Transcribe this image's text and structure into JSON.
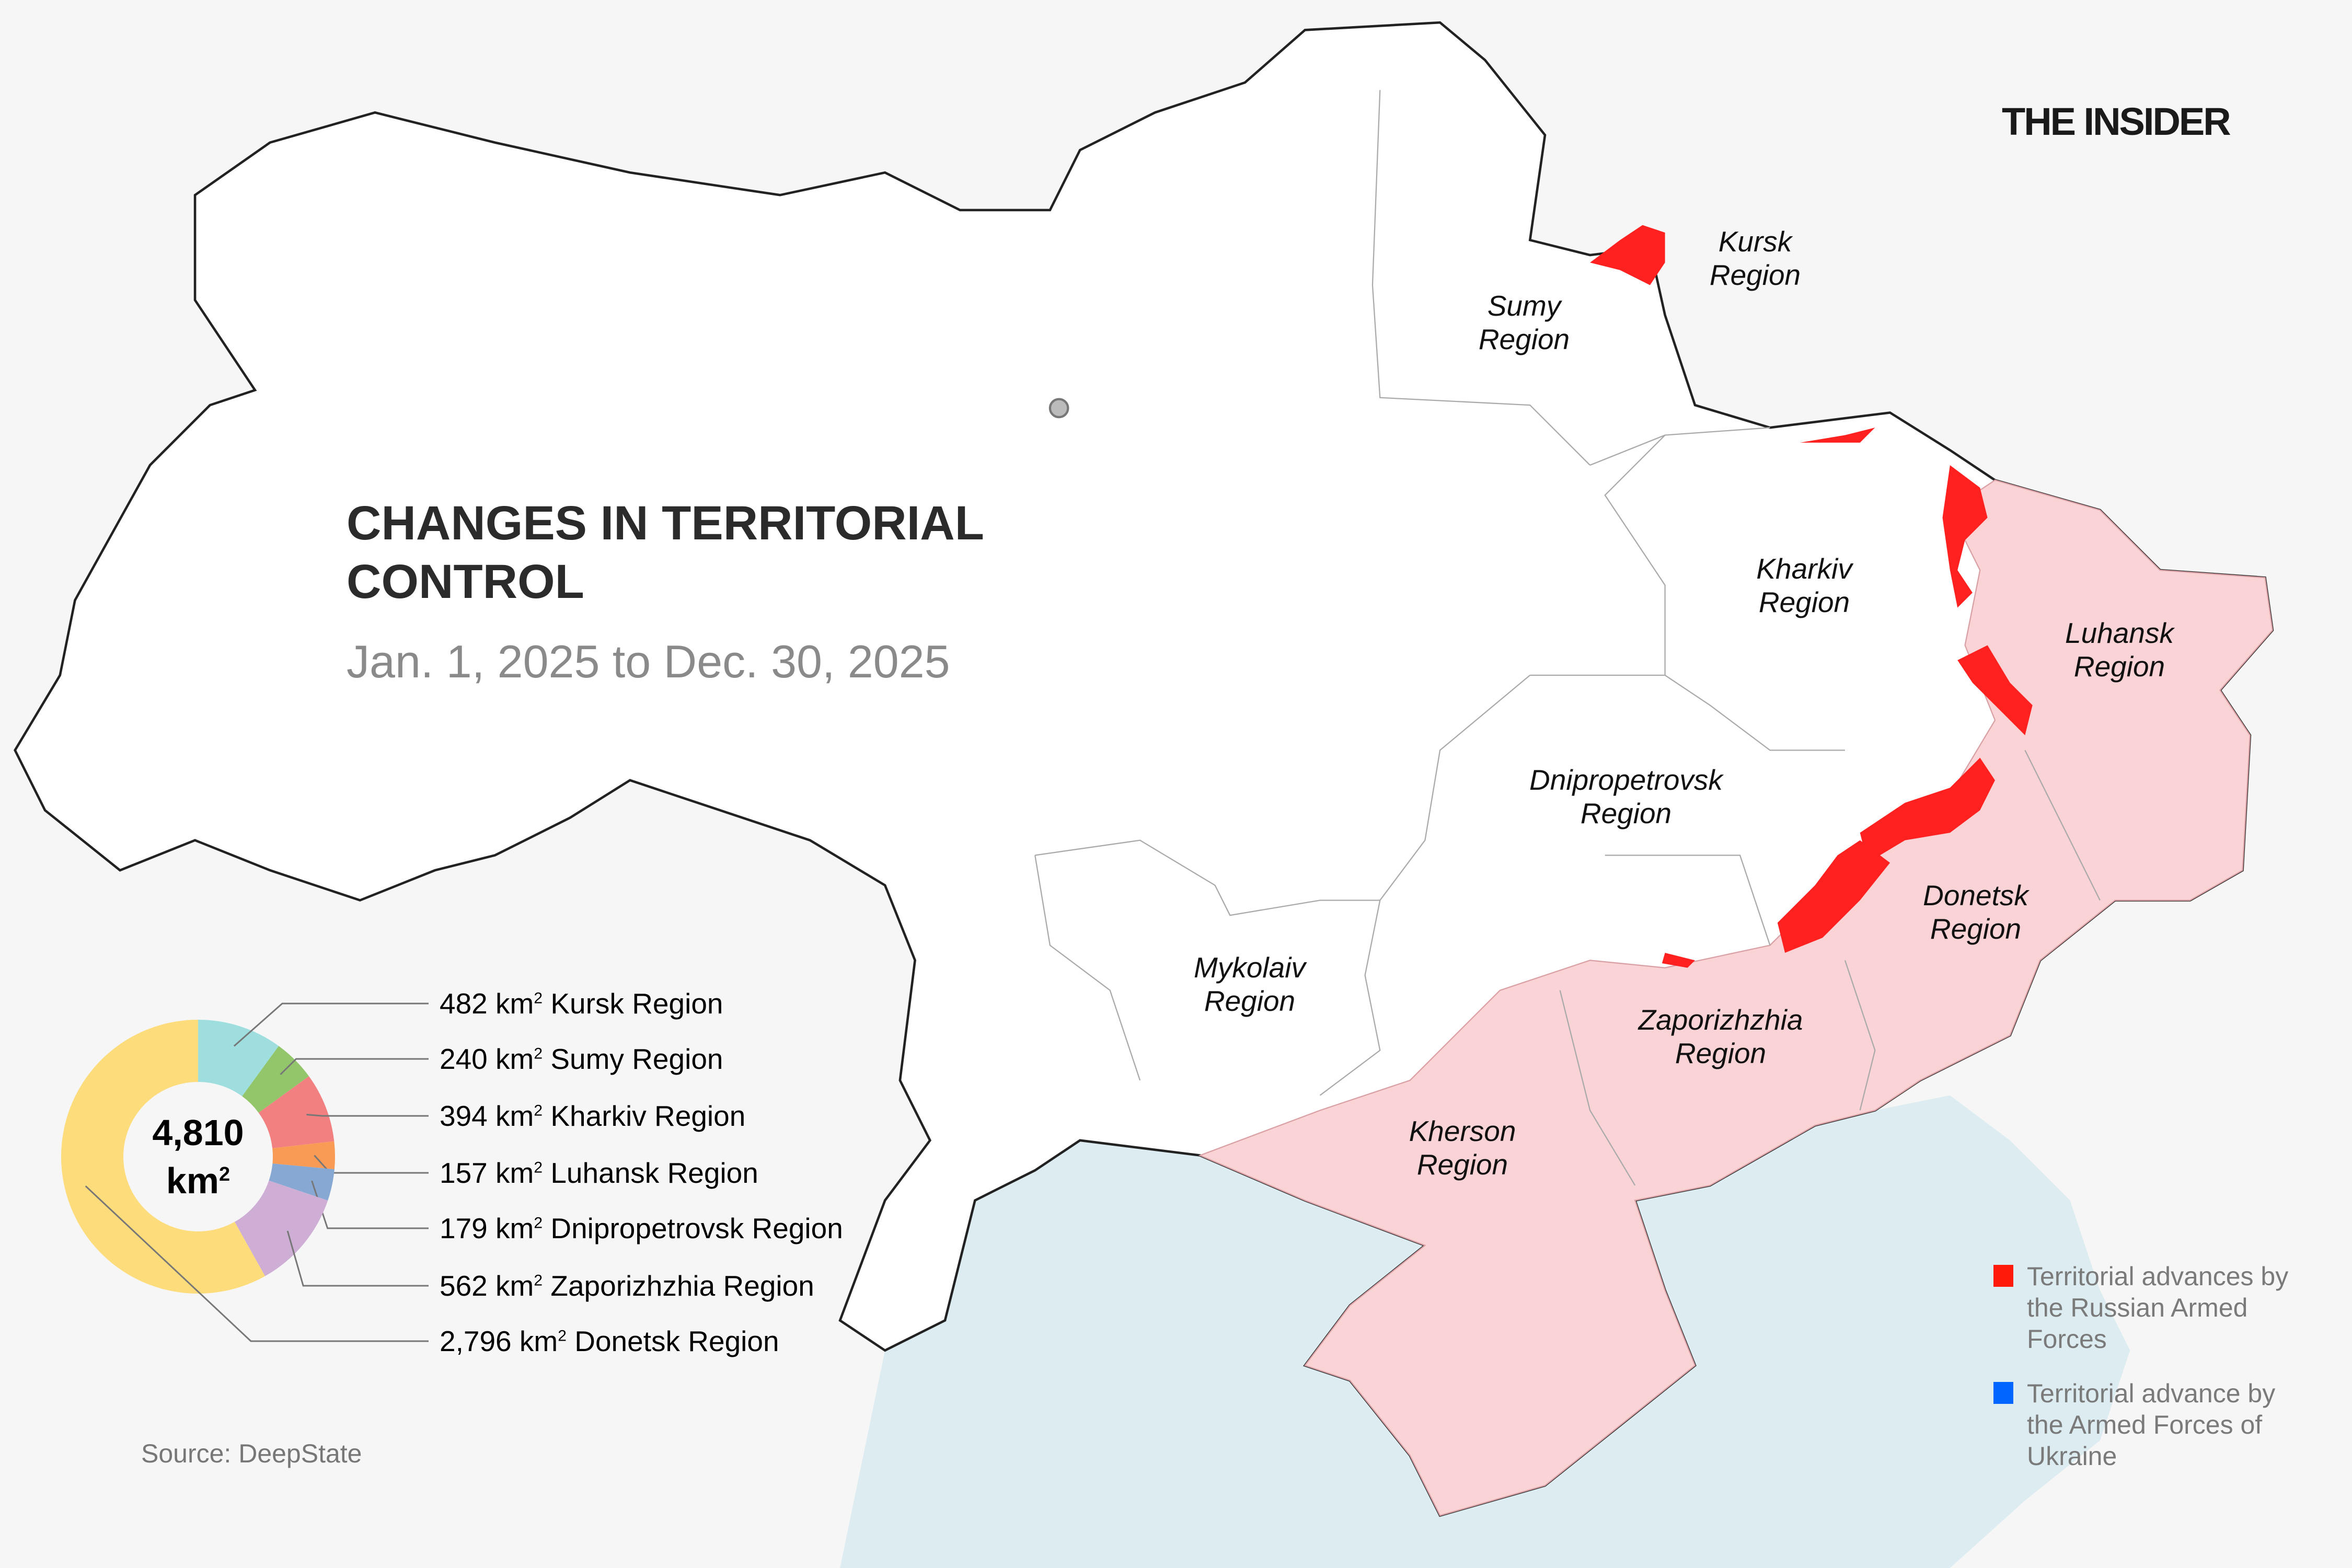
{
  "header": {
    "title_line1": "CHANGES IN TERRITORIAL",
    "title_line2": "CONTROL",
    "subtitle": "Jan. 1, 2025 to Dec. 30, 2025",
    "logo": "THE INSIDER"
  },
  "regions": [
    {
      "l1": "Kursk",
      "l2": "Region"
    },
    {
      "l1": "Sumy",
      "l2": "Region"
    },
    {
      "l1": "Kharkiv",
      "l2": "Region"
    },
    {
      "l1": "Luhansk",
      "l2": "Region"
    },
    {
      "l1": "Dnipropetrovsk",
      "l2": "Region"
    },
    {
      "l1": "Donetsk",
      "l2": "Region"
    },
    {
      "l1": "Zaporizhzhia",
      "l2": "Region"
    },
    {
      "l1": "Mykolaiv",
      "l2": "Region"
    },
    {
      "l1": "Kherson",
      "l2": "Region"
    }
  ],
  "legend": {
    "russian": {
      "text": "Territorial advances by the Russian Armed Forces",
      "color": "#ff1a0a"
    },
    "ukraine": {
      "text": "Territorial advance by the Armed Forces of Ukraine",
      "color": "#0066ff"
    }
  },
  "colors": {
    "occupied": "#f9d3d5",
    "advance": "#ff2020",
    "sea": "#dcecf1",
    "land": "#ffffff"
  },
  "source": "Source: DeepState",
  "chart_data": {
    "type": "pie",
    "donut": true,
    "total_label": "4,810",
    "total_unit": "km",
    "unit": "km",
    "categories": [
      "Kursk Region",
      "Sumy Region",
      "Kharkiv Region",
      "Luhansk Region",
      "Dnipropetrovsk Region",
      "Zaporizhzhia Region",
      "Donetsk Region"
    ],
    "values": [
      482,
      240,
      394,
      157,
      179,
      562,
      2796
    ],
    "value_labels": [
      "482",
      "240",
      "394",
      "157",
      "179",
      "562",
      "2,796"
    ],
    "colors": [
      "#9edede",
      "#93c66a",
      "#f28080",
      "#f99b55",
      "#88a8d4",
      "#cfaed6",
      "#fddc7c"
    ]
  }
}
